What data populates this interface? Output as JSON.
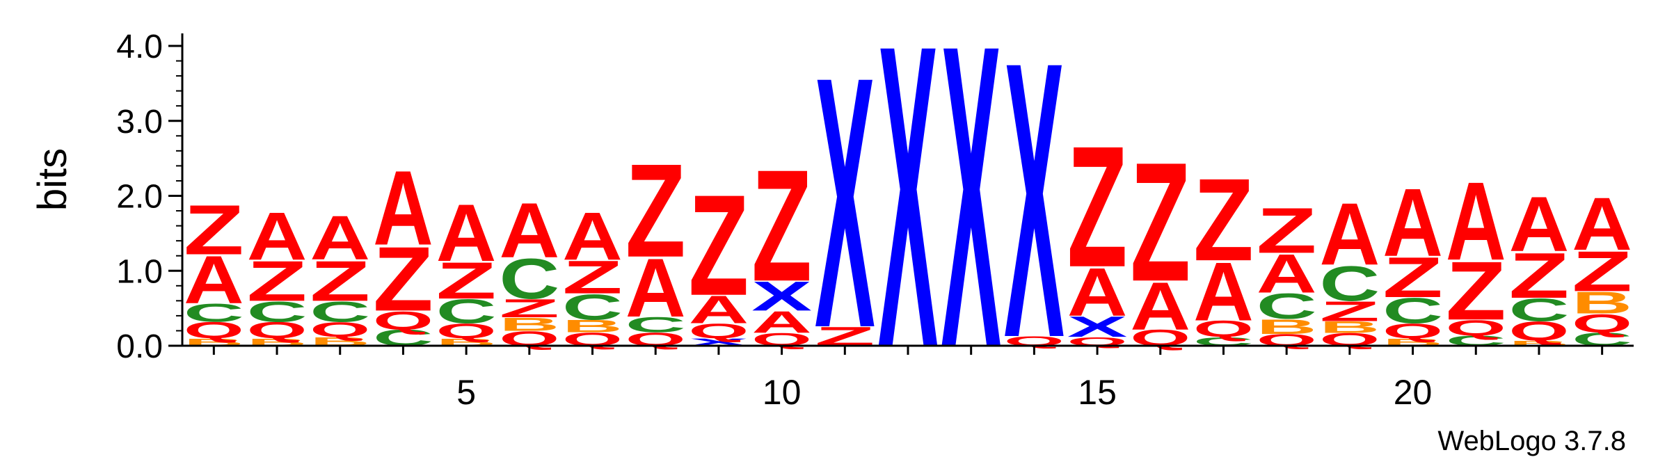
{
  "chart_data": {
    "type": "sequence-logo",
    "ylabel": "bits",
    "ylim": [
      0,
      4.0
    ],
    "y_ticks": [
      "0.0",
      "1.0",
      "2.0",
      "3.0",
      "4.0"
    ],
    "x_ticks": [
      "5",
      "10",
      "15",
      "20"
    ],
    "x_tick_positions": [
      5,
      10,
      15,
      20
    ],
    "n_positions": 23,
    "footer": "WebLogo 3.7.8",
    "colors": {
      "A": "#ff0000",
      "Z": "#ff0000",
      "Q": "#ff0000",
      "C": "#228b22",
      "B": "#ff8c00",
      "X": "#0000ff"
    },
    "columns": [
      {
        "position": 1,
        "stack": [
          [
            "B",
            0.1
          ],
          [
            "Q",
            0.22
          ],
          [
            "C",
            0.25
          ],
          [
            "A",
            0.65
          ],
          [
            "Z",
            0.68
          ]
        ]
      },
      {
        "position": 2,
        "stack": [
          [
            "B",
            0.1
          ],
          [
            "Q",
            0.22
          ],
          [
            "C",
            0.28
          ],
          [
            "Z",
            0.55
          ],
          [
            "A",
            0.65
          ]
        ]
      },
      {
        "position": 3,
        "stack": [
          [
            "B",
            0.12
          ],
          [
            "Q",
            0.2
          ],
          [
            "C",
            0.28
          ],
          [
            "Z",
            0.55
          ],
          [
            "A",
            0.6
          ]
        ]
      },
      {
        "position": 4,
        "stack": [
          [
            "C",
            0.22
          ],
          [
            "Q",
            0.25
          ],
          [
            "Z",
            0.88
          ],
          [
            "A",
            1.02
          ]
        ]
      },
      {
        "position": 5,
        "stack": [
          [
            "B",
            0.1
          ],
          [
            "Q",
            0.2
          ],
          [
            "C",
            0.33
          ],
          [
            "Z",
            0.5
          ],
          [
            "A",
            0.78
          ]
        ]
      },
      {
        "position": 6,
        "stack": [
          [
            "Q",
            0.2
          ],
          [
            "B",
            0.18
          ],
          [
            "Z",
            0.25
          ],
          [
            "C",
            0.55
          ],
          [
            "A",
            0.75
          ]
        ]
      },
      {
        "position": 7,
        "stack": [
          [
            "Q",
            0.18
          ],
          [
            "B",
            0.17
          ],
          [
            "C",
            0.35
          ],
          [
            "Z",
            0.45
          ],
          [
            "A",
            0.65
          ]
        ]
      },
      {
        "position": 8,
        "stack": [
          [
            "Q",
            0.18
          ],
          [
            "C",
            0.21
          ],
          [
            "A",
            0.8
          ],
          [
            "Z",
            1.28
          ]
        ]
      },
      {
        "position": 9,
        "stack": [
          [
            "X",
            0.1
          ],
          [
            "Q",
            0.2
          ],
          [
            "A",
            0.38
          ],
          [
            "Z",
            1.38
          ]
        ]
      },
      {
        "position": 10,
        "stack": [
          [
            "Q",
            0.17
          ],
          [
            "A",
            0.3
          ],
          [
            "X",
            0.4
          ],
          [
            "Z",
            1.53
          ]
        ]
      },
      {
        "position": 11,
        "stack": [
          [
            "Z",
            0.26
          ],
          [
            "X",
            3.44
          ]
        ]
      },
      {
        "position": 12,
        "stack": [
          [
            "X",
            4.15
          ]
        ]
      },
      {
        "position": 13,
        "stack": [
          [
            "X",
            4.15
          ]
        ]
      },
      {
        "position": 14,
        "stack": [
          [
            "Q",
            0.13
          ],
          [
            "X",
            3.78
          ]
        ]
      },
      {
        "position": 15,
        "stack": [
          [
            "Q",
            0.12
          ],
          [
            "X",
            0.28
          ],
          [
            "A",
            0.66
          ],
          [
            "Z",
            1.66
          ]
        ]
      },
      {
        "position": 16,
        "stack": [
          [
            "Q",
            0.22
          ],
          [
            "A",
            0.65
          ],
          [
            "Z",
            1.63
          ]
        ]
      },
      {
        "position": 17,
        "stack": [
          [
            "C",
            0.12
          ],
          [
            "Q",
            0.22
          ],
          [
            "A",
            0.8
          ],
          [
            "Z",
            1.13
          ]
        ]
      },
      {
        "position": 18,
        "stack": [
          [
            "Q",
            0.16
          ],
          [
            "B",
            0.2
          ],
          [
            "C",
            0.35
          ],
          [
            "A",
            0.53
          ],
          [
            "Z",
            0.62
          ]
        ]
      },
      {
        "position": 19,
        "stack": [
          [
            "Q",
            0.17
          ],
          [
            "B",
            0.16
          ],
          [
            "Z",
            0.27
          ],
          [
            "C",
            0.48
          ],
          [
            "A",
            0.85
          ]
        ]
      },
      {
        "position": 20,
        "stack": [
          [
            "B",
            0.1
          ],
          [
            "Q",
            0.2
          ],
          [
            "C",
            0.35
          ],
          [
            "Z",
            0.55
          ],
          [
            "A",
            0.93
          ]
        ]
      },
      {
        "position": 21,
        "stack": [
          [
            "C",
            0.14
          ],
          [
            "Q",
            0.21
          ],
          [
            "Z",
            0.8
          ],
          [
            "A",
            1.07
          ]
        ]
      },
      {
        "position": 22,
        "stack": [
          [
            "B",
            0.07
          ],
          [
            "Q",
            0.26
          ],
          [
            "C",
            0.31
          ],
          [
            "Z",
            0.62
          ],
          [
            "A",
            0.75
          ]
        ]
      },
      {
        "position": 23,
        "stack": [
          [
            "C",
            0.18
          ],
          [
            "Q",
            0.25
          ],
          [
            "B",
            0.3
          ],
          [
            "Z",
            0.55
          ],
          [
            "A",
            0.72
          ]
        ]
      }
    ]
  }
}
